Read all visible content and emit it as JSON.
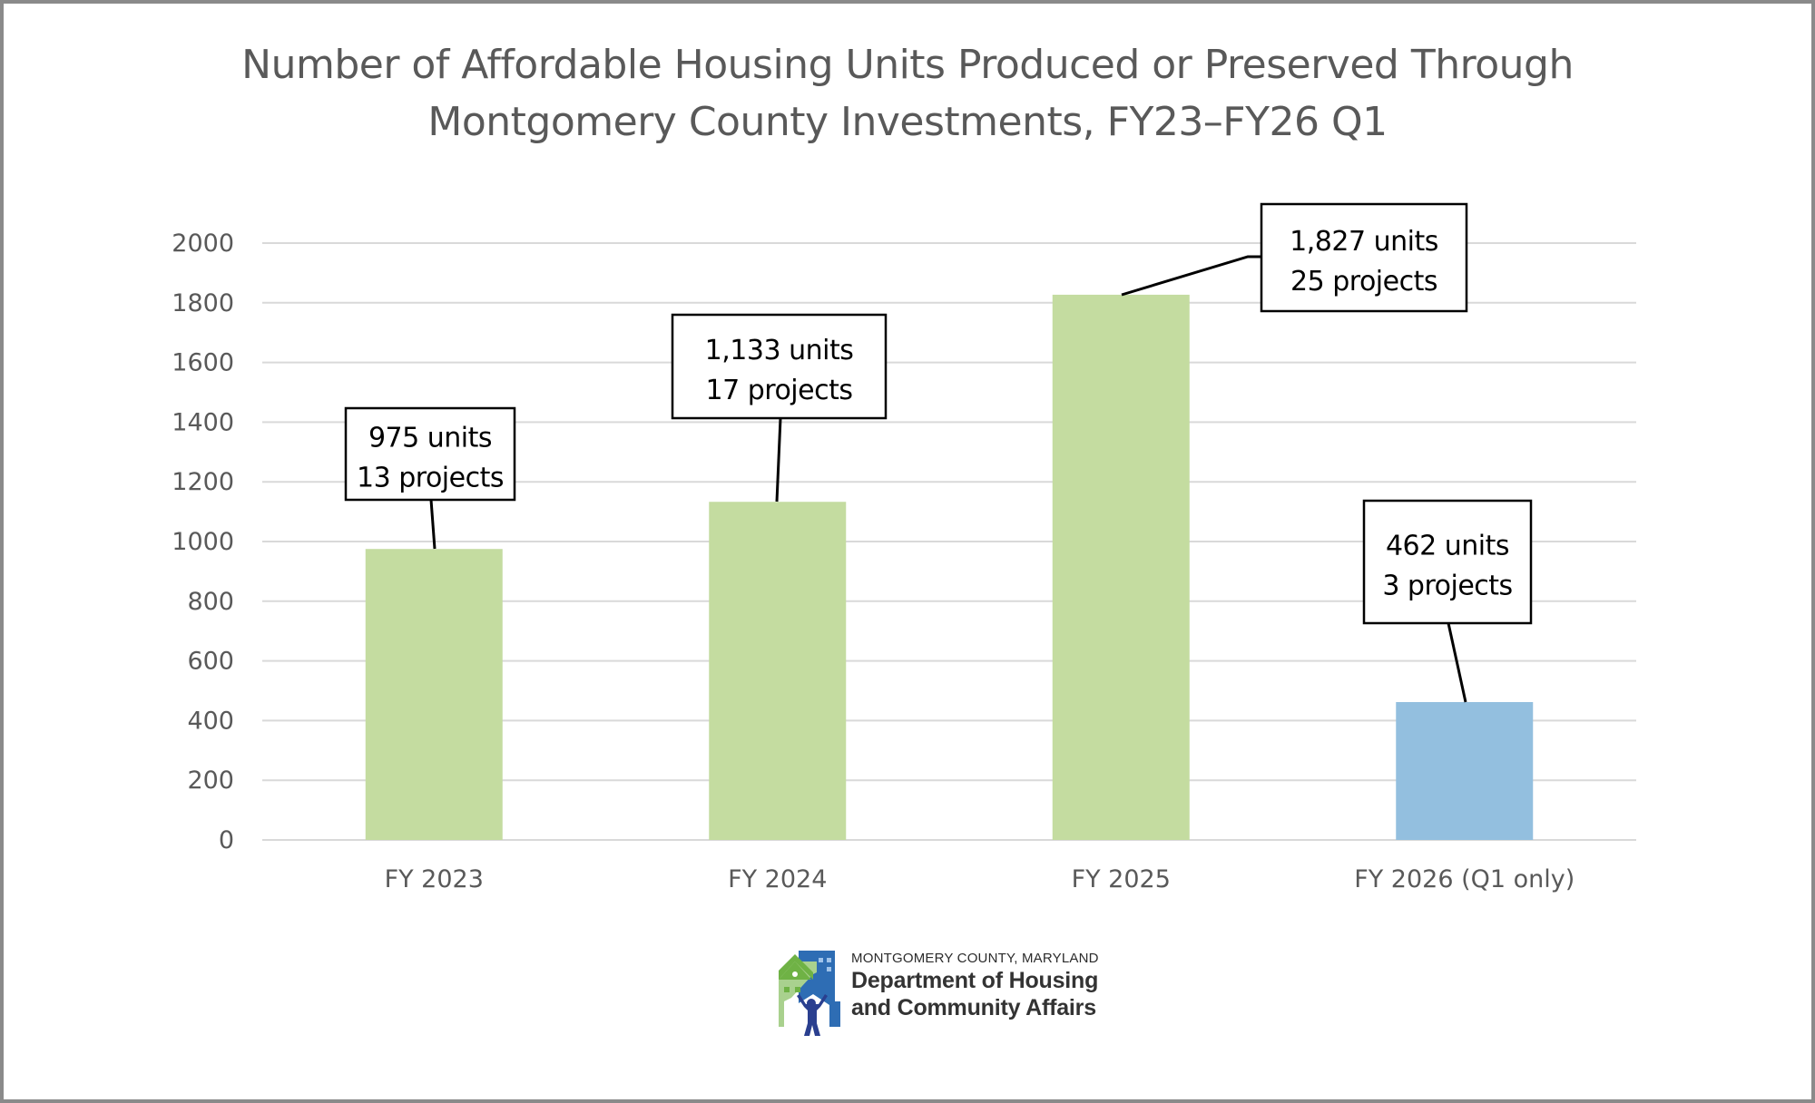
{
  "chart_data": {
    "type": "bar",
    "title": "Number of Affordable Housing Units Produced or Preserved Through Montgomery County Investments, FY23–FY26 Q1",
    "title_lines": [
      "Number of Affordable Housing Units Produced or Preserved Through",
      "Montgomery County Investments, FY23–FY26 Q1"
    ],
    "xlabel": "",
    "ylabel": "",
    "ylim": [
      0,
      2000
    ],
    "yticks": [
      0,
      200,
      400,
      600,
      800,
      1000,
      1200,
      1400,
      1600,
      1800,
      2000
    ],
    "grid": true,
    "legend": "none",
    "categories": [
      "FY 2023",
      "FY 2024",
      "FY 2025",
      "FY 2026 (Q1 only)"
    ],
    "values": [
      975,
      1133,
      1827,
      462
    ],
    "projects": [
      13,
      17,
      25,
      3
    ],
    "colors": [
      "#c4dca0",
      "#c4dca0",
      "#c4dca0",
      "#93bfdf"
    ],
    "annotations": [
      {
        "line1": "975 units",
        "line2": "13 projects"
      },
      {
        "line1": "1,133 units",
        "line2": "17 projects"
      },
      {
        "line1": "1,827 units",
        "line2": "25 projects"
      },
      {
        "line1": "462 units",
        "line2": "3 projects"
      }
    ]
  },
  "logo": {
    "org_top": "MONTGOMERY COUNTY, MARYLAND",
    "org_line1": "Department of Housing",
    "org_line2": "and Community Affairs",
    "colors": {
      "blue": "#2e6db4",
      "green": "#6fb245",
      "light_green": "#a9d18e",
      "figure": "#2a3f8f"
    }
  }
}
